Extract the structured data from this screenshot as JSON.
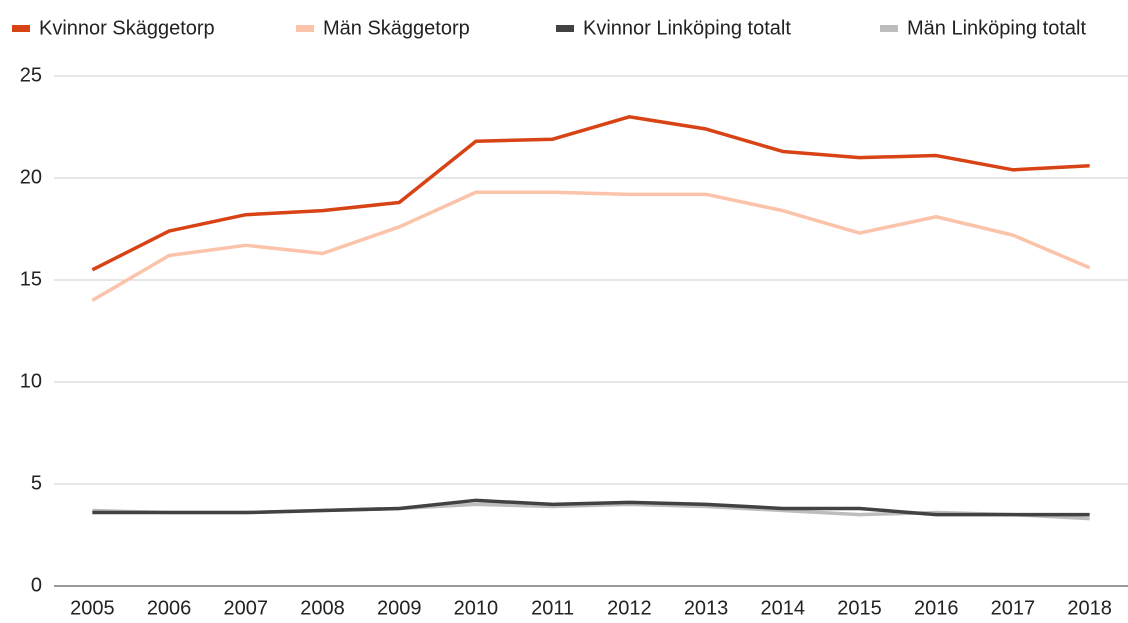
{
  "chart_data": {
    "type": "line",
    "categories": [
      "2005",
      "2006",
      "2007",
      "2008",
      "2009",
      "2010",
      "2011",
      "2012",
      "2013",
      "2014",
      "2015",
      "2016",
      "2017",
      "2018"
    ],
    "series": [
      {
        "name": "Kvinnor Skäggetorp",
        "color": "#d84315",
        "values": [
          15.5,
          17.4,
          18.2,
          18.4,
          18.8,
          21.8,
          21.9,
          23.0,
          22.4,
          21.3,
          21.0,
          21.1,
          20.4,
          20.6
        ]
      },
      {
        "name": "Män Skäggetorp",
        "color": "#fbc3a9",
        "values": [
          14.0,
          16.2,
          16.7,
          16.3,
          17.6,
          19.3,
          19.3,
          19.2,
          19.2,
          18.4,
          17.3,
          18.1,
          17.2,
          15.6
        ]
      },
      {
        "name": "Kvinnor Linköping totalt",
        "color": "#424242",
        "values": [
          3.6,
          3.6,
          3.6,
          3.7,
          3.8,
          4.2,
          4.0,
          4.1,
          4.0,
          3.8,
          3.8,
          3.5,
          3.5,
          3.5
        ]
      },
      {
        "name": "Män Linköping totalt",
        "color": "#bdbdbd",
        "values": [
          3.7,
          3.6,
          3.6,
          3.7,
          3.8,
          4.0,
          3.9,
          4.0,
          3.9,
          3.7,
          3.5,
          3.6,
          3.5,
          3.3
        ]
      }
    ],
    "ylim": [
      0,
      25
    ],
    "yticks": [
      0,
      5,
      10,
      15,
      20,
      25
    ],
    "grid": true,
    "legend": "top"
  }
}
